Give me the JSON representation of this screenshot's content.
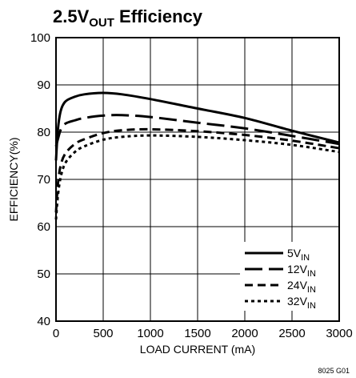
{
  "chart_data": {
    "type": "line",
    "title": {
      "prefix": "2.5V",
      "subscript": "OUT",
      "suffix": " Efficiency"
    },
    "xlabel": "LOAD CURRENT (mA)",
    "ylabel": "EFFICIENCY(%)",
    "xlim": [
      0,
      3000
    ],
    "ylim": [
      40,
      100
    ],
    "xticks": [
      0,
      500,
      1000,
      1500,
      2000,
      2500,
      3000
    ],
    "yticks": [
      40,
      50,
      60,
      70,
      80,
      90,
      100
    ],
    "grid": true,
    "legend_position": "bottom-right",
    "figure_id": "8025 G01",
    "series": [
      {
        "name": "5V",
        "name_sub": "IN",
        "dash": "solid",
        "x": [
          0,
          20,
          50,
          100,
          200,
          300,
          500,
          700,
          1000,
          1500,
          2000,
          2500,
          3000
        ],
        "y": [
          74,
          80.5,
          84.5,
          86.5,
          87.5,
          88,
          88.3,
          88,
          87,
          85,
          83,
          80.3,
          77.8
        ]
      },
      {
        "name": "12V",
        "name_sub": "IN",
        "dash": "long-dash",
        "x": [
          0,
          20,
          50,
          100,
          200,
          300,
          500,
          700,
          1000,
          1500,
          2000,
          2500,
          3000
        ],
        "y": [
          77,
          78.5,
          80.5,
          81.8,
          82.5,
          83,
          83.5,
          83.6,
          83.2,
          82,
          80.8,
          79.2,
          77.5
        ]
      },
      {
        "name": "24V",
        "name_sub": "IN",
        "dash": "dash",
        "x": [
          0,
          20,
          50,
          100,
          200,
          300,
          500,
          700,
          1000,
          1500,
          2000,
          2500,
          3000
        ],
        "y": [
          63,
          69,
          73,
          75.5,
          77.5,
          78.5,
          79.8,
          80.4,
          80.6,
          80.2,
          79.4,
          78.2,
          76.6
        ]
      },
      {
        "name": "32V",
        "name_sub": "IN",
        "dash": "dot",
        "x": [
          0,
          20,
          50,
          100,
          200,
          300,
          500,
          700,
          1000,
          1500,
          2000,
          2500,
          3000
        ],
        "y": [
          61.5,
          66.5,
          70.5,
          73.5,
          75.8,
          77,
          78.4,
          79,
          79.3,
          79,
          78.3,
          77.3,
          75.8
        ]
      }
    ]
  }
}
